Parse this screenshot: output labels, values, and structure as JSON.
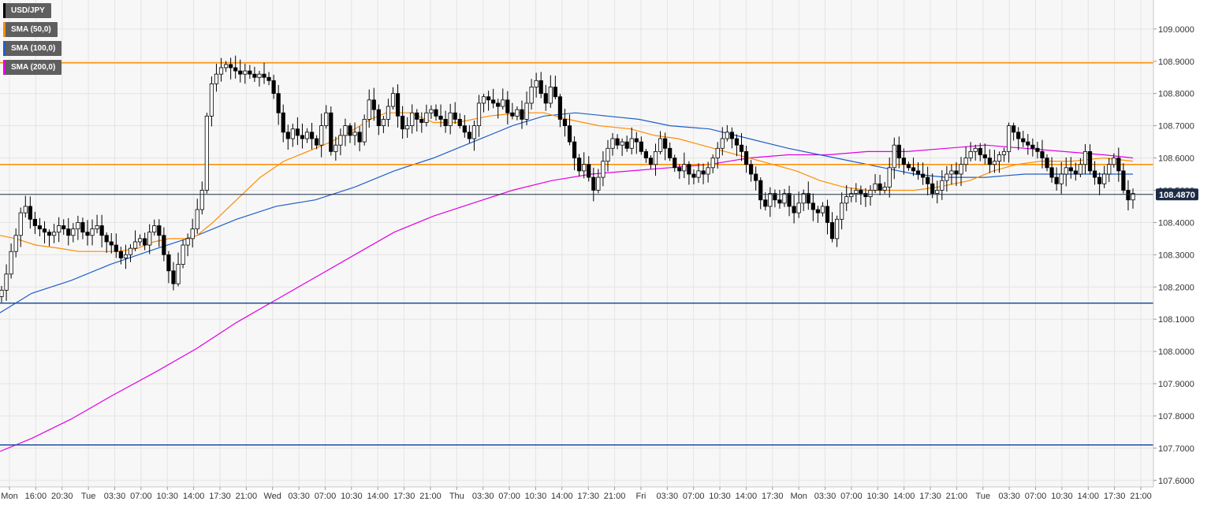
{
  "chart_data": {
    "type": "candlestick",
    "symbol": "USD/JPY",
    "legend": [
      {
        "label": "USD/JPY",
        "color": "#000000"
      },
      {
        "label": "SMA (50,0)",
        "color": "#ff8c00"
      },
      {
        "label": "SMA (100,0)",
        "color": "#1f5fc6"
      },
      {
        "label": "SMA (200,0)",
        "color": "#e100e1"
      }
    ],
    "y_ticks": [
      "109.0000",
      "108.9000",
      "108.8000",
      "108.7000",
      "108.6000",
      "108.5000",
      "108.4000",
      "108.3000",
      "108.2000",
      "108.1000",
      "108.0000",
      "107.9000",
      "107.8000",
      "107.7000",
      "107.6000"
    ],
    "y_range": [
      107.58,
      109.09
    ],
    "x_ticks": [
      "Mon",
      "16:00",
      "20:30",
      "Tue",
      "03:30",
      "07:00",
      "10:30",
      "14:00",
      "17:30",
      "21:00",
      "Wed",
      "03:30",
      "07:00",
      "10:30",
      "14:00",
      "17:30",
      "21:00",
      "Thu",
      "03:30",
      "07:00",
      "10:30",
      "14:00",
      "17:30",
      "21:00",
      "Fri",
      "03:30",
      "07:00",
      "10:30",
      "14:00",
      "17:30",
      "Mon",
      "03:30",
      "07:00",
      "10:30",
      "14:00",
      "17:30",
      "21:00",
      "Tue",
      "03:30",
      "07:00",
      "10:30",
      "14:00",
      "17:30",
      "21:00"
    ],
    "current_price": "108.4870",
    "horizontal_levels": [
      {
        "value": 108.895,
        "color": "#ff8c00"
      },
      {
        "value": 108.58,
        "color": "#ff8c00"
      },
      {
        "value": 108.15,
        "color": "#1f4e9c"
      },
      {
        "value": 107.71,
        "color": "#1f4e9c"
      }
    ],
    "close_series": [
      108.19,
      108.24,
      108.31,
      108.36,
      108.43,
      108.45,
      108.41,
      108.39,
      108.38,
      108.37,
      108.36,
      108.37,
      108.39,
      108.38,
      108.36,
      108.38,
      108.4,
      108.37,
      108.36,
      108.38,
      108.39,
      108.36,
      108.34,
      108.33,
      108.31,
      108.29,
      108.3,
      108.32,
      108.34,
      108.35,
      108.33,
      108.37,
      108.39,
      108.36,
      108.3,
      108.25,
      108.21,
      108.27,
      108.33,
      108.35,
      108.38,
      108.44,
      108.5,
      108.73,
      108.83,
      108.86,
      108.88,
      108.89,
      108.88,
      108.87,
      108.86,
      108.87,
      108.86,
      108.85,
      108.86,
      108.85,
      108.84,
      108.8,
      108.74,
      108.68,
      108.66,
      108.69,
      108.67,
      108.66,
      108.68,
      108.66,
      108.64,
      108.7,
      108.74,
      108.62,
      108.64,
      108.67,
      108.7,
      108.67,
      108.68,
      108.65,
      108.72,
      108.78,
      108.75,
      108.7,
      108.72,
      108.76,
      108.8,
      108.73,
      108.69,
      108.7,
      108.74,
      108.72,
      108.71,
      108.74,
      108.75,
      108.73,
      108.72,
      108.7,
      108.74,
      108.72,
      108.7,
      108.68,
      108.66,
      108.7,
      108.77,
      108.79,
      108.78,
      108.77,
      108.76,
      108.78,
      108.74,
      108.73,
      108.75,
      108.72,
      108.77,
      108.82,
      108.84,
      108.8,
      108.77,
      108.82,
      108.79,
      108.72,
      108.7,
      108.65,
      108.6,
      108.56,
      108.58,
      108.54,
      108.5,
      108.54,
      108.59,
      108.63,
      108.66,
      108.64,
      108.65,
      108.63,
      108.66,
      108.65,
      108.62,
      108.6,
      108.58,
      108.62,
      108.66,
      108.63,
      108.6,
      108.57,
      108.56,
      108.58,
      108.55,
      108.54,
      108.56,
      108.55,
      108.57,
      108.6,
      108.63,
      108.66,
      108.68,
      108.66,
      108.64,
      108.62,
      108.58,
      108.55,
      108.53,
      108.47,
      108.45,
      108.49,
      108.47,
      108.46,
      108.49,
      108.45,
      108.43,
      108.46,
      108.49,
      108.46,
      108.44,
      108.43,
      108.45,
      108.4,
      108.35,
      108.41,
      108.46,
      108.48,
      108.49,
      108.5,
      108.49,
      108.48,
      108.5,
      108.52,
      108.5,
      108.51,
      108.57,
      108.64,
      108.6,
      108.58,
      108.57,
      108.56,
      108.55,
      108.54,
      108.52,
      108.49,
      108.5,
      108.53,
      108.55,
      108.56,
      108.55,
      108.58,
      108.6,
      108.62,
      108.63,
      108.61,
      108.6,
      108.58,
      108.59,
      108.61,
      108.62,
      108.7,
      108.68,
      108.66,
      108.65,
      108.64,
      108.63,
      108.62,
      108.6,
      108.57,
      108.54,
      108.52,
      108.55,
      108.57,
      108.56,
      108.55,
      108.58,
      108.62,
      108.56,
      108.54,
      108.52,
      108.55,
      108.58,
      108.6,
      108.56,
      108.5,
      108.47,
      108.49
    ],
    "sma50_points": [
      [
        0,
        108.36
      ],
      [
        20,
        108.35
      ],
      [
        45,
        108.33
      ],
      [
        75,
        108.32
      ],
      [
        100,
        108.31
      ],
      [
        125,
        108.31
      ],
      [
        150,
        108.31
      ],
      [
        175,
        108.32
      ],
      [
        195,
        108.34
      ],
      [
        215,
        108.35
      ],
      [
        235,
        108.35
      ],
      [
        250,
        108.36
      ],
      [
        270,
        108.4
      ],
      [
        300,
        108.47
      ],
      [
        330,
        108.54
      ],
      [
        360,
        108.59
      ],
      [
        390,
        108.62
      ],
      [
        420,
        108.65
      ],
      [
        450,
        108.69
      ],
      [
        470,
        108.72
      ],
      [
        490,
        108.74
      ],
      [
        520,
        108.74
      ],
      [
        550,
        108.71
      ],
      [
        580,
        108.71
      ],
      [
        620,
        108.73
      ],
      [
        660,
        108.74
      ],
      [
        690,
        108.74
      ],
      [
        720,
        108.72
      ],
      [
        760,
        108.7
      ],
      [
        800,
        108.69
      ],
      [
        830,
        108.67
      ],
      [
        860,
        108.66
      ],
      [
        890,
        108.64
      ],
      [
        920,
        108.62
      ],
      [
        950,
        108.6
      ],
      [
        980,
        108.58
      ],
      [
        1010,
        108.56
      ],
      [
        1040,
        108.53
      ],
      [
        1070,
        108.51
      ],
      [
        1100,
        108.5
      ],
      [
        1130,
        108.5
      ],
      [
        1160,
        108.5
      ],
      [
        1190,
        108.51
      ],
      [
        1230,
        108.53
      ],
      [
        1260,
        108.56
      ],
      [
        1290,
        108.58
      ],
      [
        1320,
        108.59
      ],
      [
        1360,
        108.59
      ],
      [
        1400,
        108.6
      ],
      [
        1437,
        108.59
      ]
    ],
    "sma100_points": [
      [
        0,
        108.12
      ],
      [
        40,
        108.18
      ],
      [
        90,
        108.22
      ],
      [
        140,
        108.27
      ],
      [
        200,
        108.32
      ],
      [
        250,
        108.36
      ],
      [
        300,
        108.41
      ],
      [
        350,
        108.45
      ],
      [
        400,
        108.47
      ],
      [
        450,
        108.51
      ],
      [
        500,
        108.56
      ],
      [
        550,
        108.6
      ],
      [
        600,
        108.65
      ],
      [
        650,
        108.7
      ],
      [
        690,
        108.73
      ],
      [
        730,
        108.74
      ],
      [
        770,
        108.73
      ],
      [
        810,
        108.72
      ],
      [
        850,
        108.7
      ],
      [
        900,
        108.69
      ],
      [
        950,
        108.66
      ],
      [
        1000,
        108.63
      ],
      [
        1040,
        108.61
      ],
      [
        1080,
        108.59
      ],
      [
        1120,
        108.57
      ],
      [
        1160,
        108.55
      ],
      [
        1200,
        108.54
      ],
      [
        1250,
        108.54
      ],
      [
        1300,
        108.55
      ],
      [
        1350,
        108.55
      ],
      [
        1400,
        108.55
      ],
      [
        1437,
        108.55
      ]
    ],
    "sma200_points": [
      [
        0,
        107.69
      ],
      [
        40,
        107.73
      ],
      [
        90,
        107.79
      ],
      [
        140,
        107.86
      ],
      [
        200,
        107.94
      ],
      [
        250,
        108.01
      ],
      [
        300,
        108.09
      ],
      [
        350,
        108.16
      ],
      [
        400,
        108.23
      ],
      [
        450,
        108.3
      ],
      [
        500,
        108.37
      ],
      [
        550,
        108.42
      ],
      [
        600,
        108.46
      ],
      [
        650,
        108.5
      ],
      [
        700,
        108.53
      ],
      [
        750,
        108.55
      ],
      [
        800,
        108.56
      ],
      [
        850,
        108.57
      ],
      [
        900,
        108.58
      ],
      [
        950,
        108.6
      ],
      [
        1000,
        108.61
      ],
      [
        1050,
        108.61
      ],
      [
        1100,
        108.62
      ],
      [
        1150,
        108.62
      ],
      [
        1200,
        108.63
      ],
      [
        1250,
        108.64
      ],
      [
        1300,
        108.63
      ],
      [
        1350,
        108.62
      ],
      [
        1400,
        108.61
      ],
      [
        1437,
        108.6
      ]
    ]
  }
}
